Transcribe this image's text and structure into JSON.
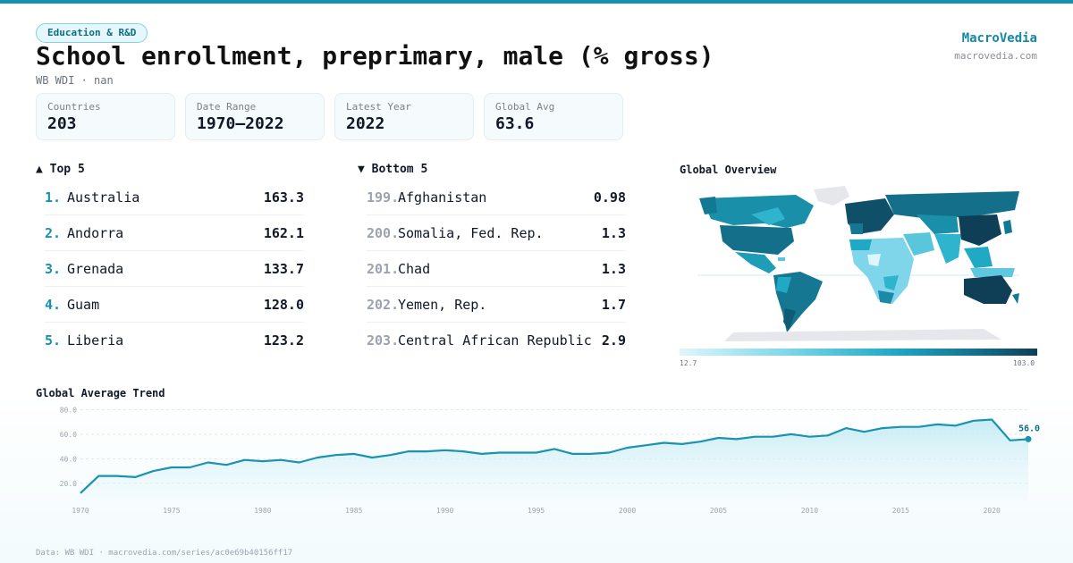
{
  "header": {
    "category": "Education & R&D",
    "title": "School enrollment, preprimary, male (% gross)",
    "subtitle": "WB WDI · nan",
    "brand_name": "MacroVedia",
    "brand_url": "macrovedia.com"
  },
  "stats": [
    {
      "label": "Countries",
      "value": "203"
    },
    {
      "label": "Date Range",
      "value": "1970–2022"
    },
    {
      "label": "Latest Year",
      "value": "2022"
    },
    {
      "label": "Global Avg",
      "value": "63.6"
    }
  ],
  "top5": {
    "heading": "▲ Top 5",
    "items": [
      {
        "rank": "1.",
        "name": "Australia",
        "value": "163.3"
      },
      {
        "rank": "2.",
        "name": "Andorra",
        "value": "162.1"
      },
      {
        "rank": "3.",
        "name": "Grenada",
        "value": "133.7"
      },
      {
        "rank": "4.",
        "name": "Guam",
        "value": "128.0"
      },
      {
        "rank": "5.",
        "name": "Liberia",
        "value": "123.2"
      }
    ]
  },
  "bottom5": {
    "heading": "▼ Bottom 5",
    "items": [
      {
        "rank": "199.",
        "name": "Afghanistan",
        "value": "0.98"
      },
      {
        "rank": "200.",
        "name": "Somalia, Fed. Rep.",
        "value": "1.3"
      },
      {
        "rank": "201.",
        "name": "Chad",
        "value": "1.3"
      },
      {
        "rank": "202.",
        "name": "Yemen, Rep.",
        "value": "1.7"
      },
      {
        "rank": "203.",
        "name": "Central African Republic",
        "value": "2.9"
      }
    ]
  },
  "map": {
    "heading": "Global Overview",
    "legend_min": "12.7",
    "legend_max": "103.0",
    "colors": {
      "low": "#dff6fb",
      "mid": "#1fa9c4",
      "high": "#0e3f57",
      "nodata": "#e5e7eb"
    }
  },
  "trend": {
    "heading": "Global Average Trend",
    "last_label": "56.0"
  },
  "footer": "Data: WB WDI · macrovedia.com/series/ac0e69b40156ff17",
  "colors": {
    "accent": "#1692ad",
    "line": "#1a93b0",
    "fill": "#d7f1f7"
  },
  "chart_data": {
    "type": "area",
    "title": "Global Average Trend",
    "xlabel": "",
    "ylabel": "",
    "x": [
      1970,
      1971,
      1972,
      1973,
      1974,
      1975,
      1976,
      1977,
      1978,
      1979,
      1980,
      1981,
      1982,
      1983,
      1984,
      1985,
      1986,
      1987,
      1988,
      1989,
      1990,
      1991,
      1992,
      1993,
      1994,
      1995,
      1996,
      1997,
      1998,
      1999,
      2000,
      2001,
      2002,
      2003,
      2004,
      2005,
      2006,
      2007,
      2008,
      2009,
      2010,
      2011,
      2012,
      2013,
      2014,
      2015,
      2016,
      2017,
      2018,
      2019,
      2020,
      2021,
      2022
    ],
    "y": [
      12,
      26,
      26,
      25,
      30,
      33,
      33,
      37,
      35,
      39,
      38,
      39,
      37,
      41,
      43,
      44,
      41,
      43,
      46,
      46,
      47,
      46,
      44,
      45,
      45,
      45,
      48,
      44,
      44,
      45,
      49,
      51,
      53,
      52,
      54,
      57,
      56,
      58,
      58,
      60,
      58,
      59,
      65,
      62,
      65,
      66,
      66,
      68,
      67,
      71,
      72,
      55,
      56
    ],
    "xticks": [
      "1970",
      "1975",
      "1980",
      "1985",
      "1990",
      "1995",
      "2000",
      "2005",
      "2010",
      "2015",
      "2020"
    ],
    "yticks": [
      "20.0",
      "40.0",
      "60.0",
      "80.0"
    ],
    "ylim": [
      6,
      84
    ],
    "xlim": [
      1970,
      2022
    ],
    "grid": true
  }
}
